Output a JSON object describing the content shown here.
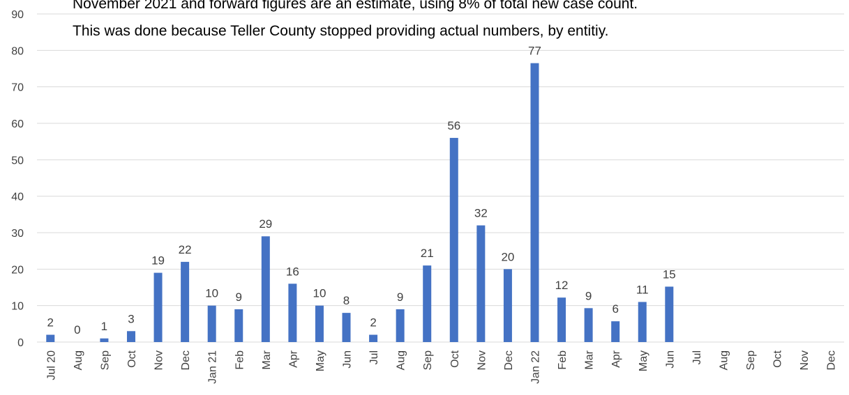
{
  "chart_data": {
    "type": "bar",
    "title": "",
    "xlabel": "",
    "ylabel": "",
    "ylim": [
      0,
      90
    ],
    "yticks": [
      0,
      10,
      20,
      30,
      40,
      50,
      60,
      70,
      80,
      90
    ],
    "grid": true,
    "legend": "none",
    "bar_color": "#4472C4",
    "grid_color": "#D9D9D9",
    "annotation": [
      "November 2021 and forward figures are an estimate, using 8% of total new case count.",
      "This was done because Teller County stopped providing actual numbers, by entitiy."
    ],
    "categories": [
      "Jul 20",
      "Aug",
      "Sep",
      "Oct",
      "Nov",
      "Dec",
      "Jan 21",
      "Feb",
      "Mar",
      "Apr",
      "May",
      "Jun",
      "Jul",
      "Aug",
      "Sep",
      "Oct",
      "Nov",
      "Dec",
      "Jan 22",
      "Feb",
      "Mar",
      "Apr",
      "May",
      "Jun",
      "Jul",
      "Aug",
      "Sep",
      "Oct",
      "Nov",
      "Dec"
    ],
    "values": [
      2,
      0,
      1,
      3,
      19,
      22,
      10,
      9,
      29,
      16,
      10,
      8,
      2,
      9,
      21,
      56,
      32,
      20,
      76.5,
      12.2,
      9.3,
      5.7,
      11,
      15.2,
      null,
      null,
      null,
      null,
      null,
      null
    ],
    "data_labels": [
      "2",
      "0",
      "1",
      "3",
      "19",
      "22",
      "10",
      "9",
      "29",
      "16",
      "10",
      "8",
      "2",
      "9",
      "21",
      "56",
      "32",
      "20",
      "77",
      "12",
      "9",
      "6",
      "11",
      "15",
      "",
      "",
      "",
      "",
      "",
      ""
    ]
  }
}
